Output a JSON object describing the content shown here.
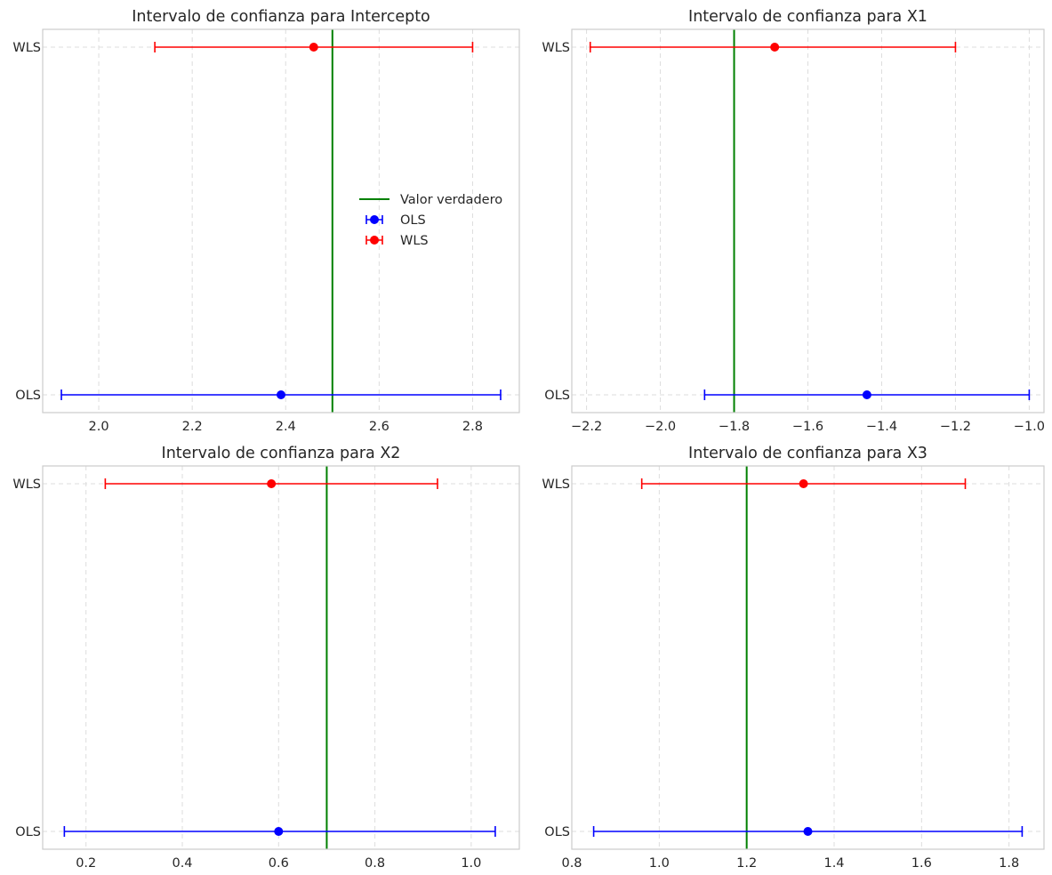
{
  "chart_data": [
    {
      "type": "errorbar",
      "title": "Intervalo de confianza para Intercepto",
      "categories": [
        "OLS",
        "WLS"
      ],
      "series": [
        {
          "name": "OLS",
          "color": "#0000ff",
          "estimate": 2.39,
          "lower": 1.92,
          "upper": 2.86
        },
        {
          "name": "WLS",
          "color": "#ff0000",
          "estimate": 2.46,
          "lower": 2.12,
          "upper": 2.8
        }
      ],
      "true_value": 2.5,
      "true_value_label": "Valor verdadero",
      "true_value_color": "#008000",
      "xlim": [
        1.88,
        2.9
      ],
      "xticks": [
        2.0,
        2.2,
        2.4,
        2.6,
        2.8
      ],
      "xtick_labels": [
        "2.0",
        "2.2",
        "2.4",
        "2.6",
        "2.8"
      ],
      "legend": {
        "placement": "center-right",
        "entries": [
          "Valor verdadero",
          "OLS",
          "WLS"
        ]
      },
      "grid": true
    },
    {
      "type": "errorbar",
      "title": "Intervalo de confianza para X1",
      "categories": [
        "OLS",
        "WLS"
      ],
      "series": [
        {
          "name": "OLS",
          "color": "#0000ff",
          "estimate": -1.44,
          "lower": -1.88,
          "upper": -1.0
        },
        {
          "name": "WLS",
          "color": "#ff0000",
          "estimate": -1.69,
          "lower": -2.19,
          "upper": -1.2
        }
      ],
      "true_value": -1.8,
      "true_value_color": "#008000",
      "xlim": [
        -2.24,
        -0.96
      ],
      "xticks": [
        -2.2,
        -2.0,
        -1.8,
        -1.6,
        -1.4,
        -1.2,
        -1.0
      ],
      "xtick_labels": [
        "−2.2",
        "−2.0",
        "−1.8",
        "−1.6",
        "−1.4",
        "−1.2",
        "−1.0"
      ],
      "grid": true
    },
    {
      "type": "errorbar",
      "title": "Intervalo de confianza para X2",
      "categories": [
        "OLS",
        "WLS"
      ],
      "series": [
        {
          "name": "OLS",
          "color": "#0000ff",
          "estimate": 0.6,
          "lower": 0.155,
          "upper": 1.05
        },
        {
          "name": "WLS",
          "color": "#ff0000",
          "estimate": 0.585,
          "lower": 0.24,
          "upper": 0.93
        }
      ],
      "true_value": 0.7,
      "true_value_color": "#008000",
      "xlim": [
        0.11,
        1.1
      ],
      "xticks": [
        0.2,
        0.4,
        0.6,
        0.8,
        1.0
      ],
      "xtick_labels": [
        "0.2",
        "0.4",
        "0.6",
        "0.8",
        "1.0"
      ],
      "grid": true
    },
    {
      "type": "errorbar",
      "title": "Intervalo de confianza para X3",
      "categories": [
        "OLS",
        "WLS"
      ],
      "series": [
        {
          "name": "OLS",
          "color": "#0000ff",
          "estimate": 1.34,
          "lower": 0.85,
          "upper": 1.83
        },
        {
          "name": "WLS",
          "color": "#ff0000",
          "estimate": 1.33,
          "lower": 0.96,
          "upper": 1.7
        }
      ],
      "true_value": 1.2,
      "true_value_color": "#008000",
      "xlim": [
        0.8,
        1.88
      ],
      "xticks": [
        0.8,
        1.0,
        1.2,
        1.4,
        1.6,
        1.8
      ],
      "xtick_labels": [
        "0.8",
        "1.0",
        "1.2",
        "1.4",
        "1.6",
        "1.8"
      ],
      "grid": true
    }
  ]
}
